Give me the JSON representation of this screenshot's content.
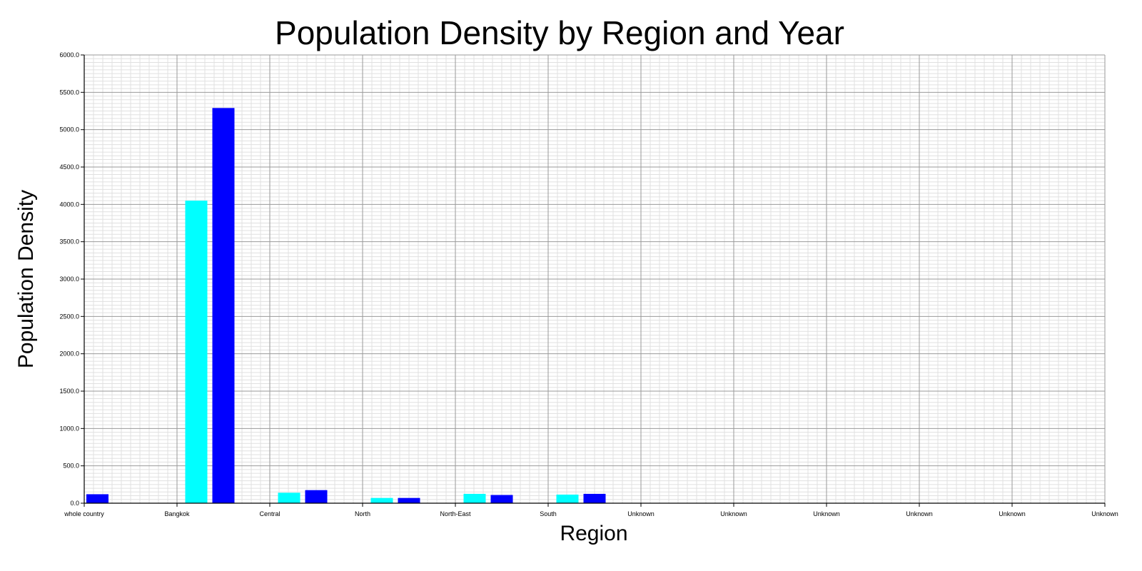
{
  "chart_data": {
    "type": "bar",
    "title": "Population Density by Region and Year",
    "xlabel": "Region",
    "ylabel": "Population Density",
    "categories": [
      "whole country",
      "Bangkok",
      "Central",
      "North",
      "North-East",
      "South",
      "Unknown",
      "Unknown",
      "Unknown",
      "Unknown",
      "Unknown",
      "Unknown"
    ],
    "series": [
      {
        "values": [
          0,
          4050,
          140,
          70,
          125,
          115,
          0,
          0,
          0,
          0,
          0,
          0
        ],
        "color": "#00ffff"
      },
      {
        "values": [
          120,
          5290,
          175,
          70,
          110,
          125,
          0,
          0,
          0,
          0,
          0,
          0
        ],
        "color": "#0000ff"
      }
    ],
    "ylim": [
      0,
      6000
    ],
    "yticks": [
      "0.0",
      "500.0",
      "1000.0",
      "1500.0",
      "2000.0",
      "2500.0",
      "3000.0",
      "3500.0",
      "4000.0",
      "4500.0",
      "5000.0",
      "5500.0",
      "6000.0"
    ],
    "grid": true,
    "legend": "none"
  }
}
